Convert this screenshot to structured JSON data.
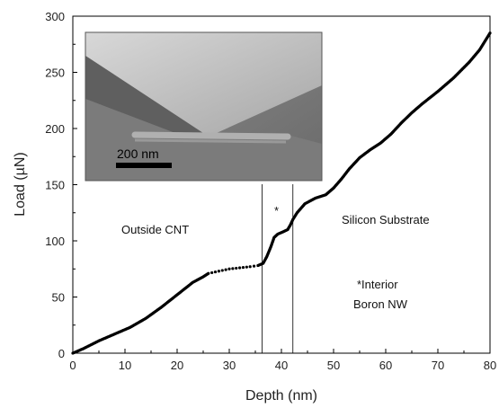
{
  "chart_data": {
    "type": "scatter",
    "title": "",
    "xlabel": "Depth (nm)",
    "ylabel": "Load (µN)",
    "xlim": [
      0,
      80
    ],
    "ylim": [
      0,
      300
    ],
    "xticks": [
      0,
      10,
      20,
      30,
      40,
      50,
      60,
      70,
      80
    ],
    "yticks": [
      0,
      50,
      100,
      150,
      200,
      250,
      300
    ],
    "grid": false,
    "legend": "none",
    "marker_color": "#000000",
    "series": [
      {
        "x": [
          0,
          2,
          5,
          8,
          11,
          14,
          17,
          20,
          23,
          25,
          26,
          28,
          30,
          32,
          34,
          35.5,
          36.5,
          37.2,
          38,
          38.6,
          39.3,
          40.3,
          41.2,
          41.7,
          42.2,
          43,
          44.5,
          46.5,
          48.5,
          50,
          51.5,
          53,
          55,
          57,
          59,
          61,
          63,
          65,
          67,
          70,
          73,
          76,
          78,
          80
        ],
        "y": [
          0,
          4,
          11,
          17,
          23,
          31,
          41,
          52,
          63,
          68,
          71,
          73,
          75,
          76,
          77,
          78,
          80,
          86,
          95,
          103,
          106,
          108,
          110,
          114,
          119,
          125,
          133,
          138,
          141,
          147,
          155,
          164,
          174,
          181,
          187,
          195,
          205,
          214,
          222,
          233,
          245,
          259,
          270,
          285
        ]
      }
    ],
    "vlines": [
      36.3,
      42.2
    ],
    "annotations": {
      "asterisk": "*",
      "outside": "Outside CNT",
      "substrate": "Silicon Substrate",
      "interior_line1": "*Interior",
      "interior_line2": "Boron NW"
    },
    "inset": {
      "scale_bar_label": "200 nm"
    }
  }
}
